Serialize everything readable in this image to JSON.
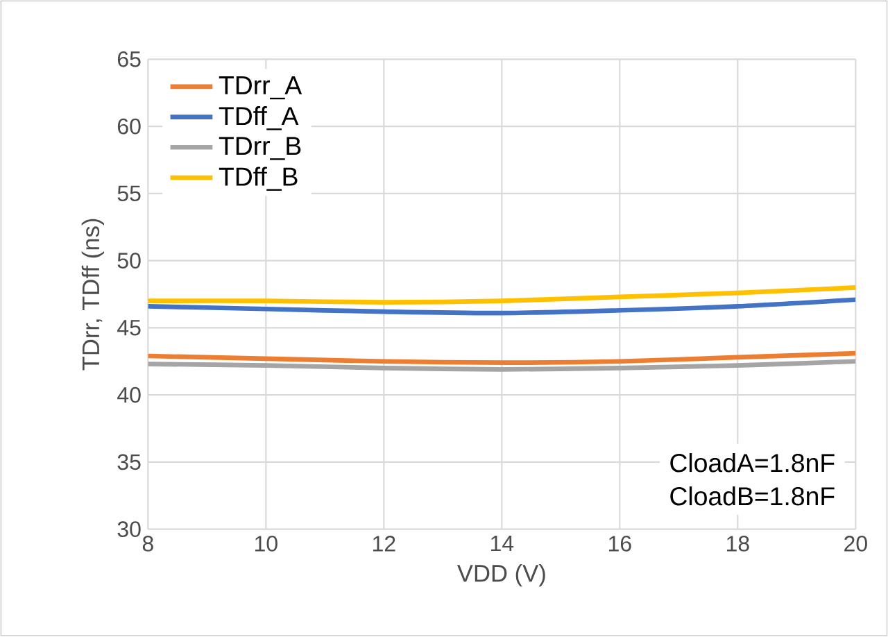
{
  "chart_data": {
    "type": "line",
    "xlabel": "VDD (V)",
    "ylabel": "TDrr, TDff (ns)",
    "x": [
      8,
      10,
      12,
      14,
      16,
      18,
      20
    ],
    "series": [
      {
        "name": "TDrr_A",
        "color": "#ed7d31",
        "values": [
          42.9,
          42.7,
          42.5,
          42.4,
          42.5,
          42.8,
          43.1
        ]
      },
      {
        "name": "TDff_A",
        "color": "#4472c4",
        "values": [
          46.6,
          46.4,
          46.2,
          46.1,
          46.3,
          46.6,
          47.1
        ]
      },
      {
        "name": "TDrr_B",
        "color": "#a5a5a5",
        "values": [
          42.3,
          42.2,
          42.0,
          41.9,
          42.0,
          42.2,
          42.5
        ]
      },
      {
        "name": "TDff_B",
        "color": "#ffc000",
        "values": [
          47.0,
          47.0,
          46.9,
          47.0,
          47.3,
          47.6,
          48.0
        ]
      }
    ],
    "xlim": [
      8,
      20
    ],
    "xticks": [
      8,
      10,
      12,
      14,
      16,
      18,
      20
    ],
    "ylim": [
      30,
      65
    ],
    "yticks": [
      30,
      35,
      40,
      45,
      50,
      55,
      60,
      65
    ],
    "grid": true,
    "legend": "top left",
    "marker": "none",
    "line_style": "solid",
    "annotations": [
      "CloadA=1.8nF",
      "CloadB=1.8nF"
    ]
  }
}
